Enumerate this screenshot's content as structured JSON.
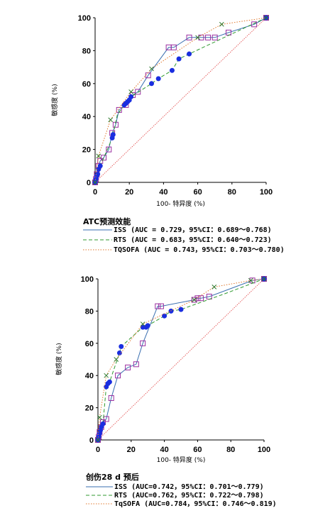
{
  "chart_data": [
    {
      "type": "line",
      "title": "",
      "xlabel": "100- 特异度 (%)",
      "ylabel": "敏感度 (%)",
      "xlim": [
        0,
        100
      ],
      "ylim": [
        0,
        100
      ],
      "xticks": [
        "0",
        "20",
        "40",
        "60",
        "80",
        "100"
      ],
      "yticks": [
        "0",
        "20",
        "40",
        "60",
        "80",
        "100"
      ],
      "legend_title": "ATC预测效能",
      "legend_placement": "below",
      "reference_line": true,
      "series": [
        {
          "name": "ISS (AUC = 0.729，95%CI：0.689～0.768)",
          "color": "#3a6fb0",
          "dash": "",
          "marker": "square",
          "marker_color": "#9a2fa0",
          "x": [
            0,
            0.5,
            1,
            2,
            3,
            5,
            8,
            10,
            12,
            14,
            18,
            22,
            25,
            31,
            43,
            46,
            55,
            62,
            66,
            70,
            78,
            93,
            100
          ],
          "y": [
            0,
            2,
            5,
            10,
            13,
            15,
            20,
            30,
            35,
            44,
            47,
            53,
            55,
            65,
            82,
            82,
            88,
            88,
            88,
            88,
            91,
            96,
            100
          ]
        },
        {
          "name": "RTS (AUC = 0.683，95%CI：0.640～0.723)",
          "color": "#2f9a2f",
          "dash": "5,3",
          "marker": "circle",
          "marker_color": "#1a2ee0",
          "x": [
            0,
            0.5,
            1,
            1.5,
            2,
            3,
            8,
            10,
            10.5,
            13,
            17,
            18,
            19,
            20,
            21,
            33,
            37,
            45,
            49,
            55,
            100
          ],
          "y": [
            0,
            2,
            4,
            5,
            8,
            10,
            22,
            27,
            29,
            41,
            47,
            48,
            49,
            50,
            52,
            60,
            63,
            68,
            75,
            78,
            100
          ],
          "marker_x": [
            0,
            0.5,
            1,
            1.5,
            2,
            3,
            10,
            10.5,
            17,
            18,
            19,
            20,
            21,
            33,
            37,
            45,
            49,
            55,
            100
          ],
          "marker_y": [
            0,
            2,
            4,
            5,
            8,
            10,
            27,
            29,
            47,
            48,
            49,
            50,
            52,
            60,
            63,
            68,
            75,
            78,
            100
          ]
        },
        {
          "name": "TQSOFA (AUC = 0.743，95%CI：0.703～0.780)",
          "color": "#e0762a",
          "dash": "1.5,2",
          "marker": "x",
          "marker_color": "#2f7a2f",
          "x": [
            0,
            2,
            9,
            21,
            33,
            60,
            74,
            100
          ],
          "y": [
            0,
            16,
            38,
            55,
            69,
            88,
            96,
            100
          ]
        }
      ]
    },
    {
      "type": "line",
      "title": "",
      "xlabel": "100- 特异度 (%)",
      "ylabel": "敏感度 (%)",
      "xlim": [
        0,
        100
      ],
      "ylim": [
        0,
        100
      ],
      "xticks": [
        "0",
        "20",
        "40",
        "60",
        "80",
        "100"
      ],
      "yticks": [
        "0",
        "20",
        "40",
        "60",
        "80",
        "100"
      ],
      "legend_title": "创伤28 d 预后",
      "legend_placement": "below",
      "reference_line": true,
      "series": [
        {
          "name": "ISS (AUC=0.742，95%CI：0.701～0.779)",
          "color": "#3a6fb0",
          "dash": "",
          "marker": "square",
          "marker_color": "#9a2fa0",
          "x": [
            0,
            0.5,
            1,
            2,
            3,
            5,
            8,
            12,
            18,
            23,
            27,
            36,
            38,
            58,
            60,
            62,
            67,
            93,
            100
          ],
          "y": [
            0,
            2,
            5,
            8,
            11,
            13,
            26,
            40,
            45,
            47,
            60,
            83,
            83,
            87,
            88,
            88,
            89,
            99,
            100
          ]
        },
        {
          "name": "RTS (AUC=0.762，95%CI：0.722～0.798)",
          "color": "#2f9a2f",
          "dash": "5,3",
          "marker": "circle",
          "marker_color": "#1a2ee0",
          "x": [
            0,
            0.5,
            1,
            1.5,
            2,
            3,
            5,
            6,
            7,
            13,
            14,
            27,
            29,
            30,
            40,
            44,
            50,
            77,
            100
          ],
          "y": [
            0,
            2,
            4,
            6,
            8,
            10,
            33,
            35,
            36,
            54,
            58,
            70,
            70,
            71,
            77,
            80,
            81,
            91,
            100
          ],
          "marker_x": [
            0,
            0.5,
            1,
            1.5,
            2,
            3,
            5,
            6,
            7,
            13,
            14,
            27,
            29,
            30,
            40,
            44,
            50,
            100
          ],
          "marker_y": [
            0,
            2,
            4,
            6,
            8,
            10,
            33,
            35,
            36,
            54,
            58,
            70,
            70,
            71,
            77,
            80,
            81,
            100
          ]
        },
        {
          "name": "TqSOFA (AUC=0.784，95%CI：0.746～0.819)",
          "color": "#e0762a",
          "dash": "1.5,2",
          "marker": "x",
          "marker_color": "#2f7a2f",
          "x": [
            0,
            1,
            5,
            11,
            27,
            58,
            70,
            92,
            100
          ],
          "y": [
            0,
            14,
            40,
            50,
            72,
            87,
            95,
            99,
            100
          ]
        }
      ]
    }
  ]
}
